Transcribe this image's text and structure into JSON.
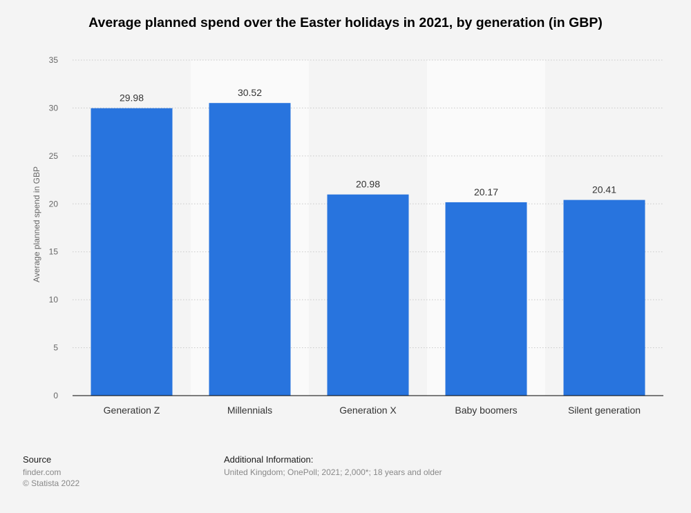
{
  "chart_data": {
    "type": "bar",
    "title": "Average planned spend over the Easter holidays in 2021, by generation (in GBP)",
    "ylabel": "Average planned spend in GBP",
    "xlabel": "",
    "categories": [
      "Generation Z",
      "Millennials",
      "Generation X",
      "Baby boomers",
      "Silent generation"
    ],
    "values": [
      29.98,
      30.52,
      20.98,
      20.17,
      20.41
    ],
    "value_labels": [
      "29.98",
      "30.52",
      "20.98",
      "20.17",
      "20.41"
    ],
    "ylim": [
      0,
      35
    ],
    "yticks": [
      0,
      5,
      10,
      15,
      20,
      25,
      30,
      35
    ],
    "grid": true,
    "bar_color": "#2874de",
    "band_color": "#fafafa"
  },
  "footer": {
    "source_heading": "Source",
    "source_lines": [
      "finder.com",
      "© Statista 2022"
    ],
    "info_heading": "Additional Information:",
    "info_text": "United Kingdom; OnePoll; 2021; 2,000*; 18 years and older"
  }
}
